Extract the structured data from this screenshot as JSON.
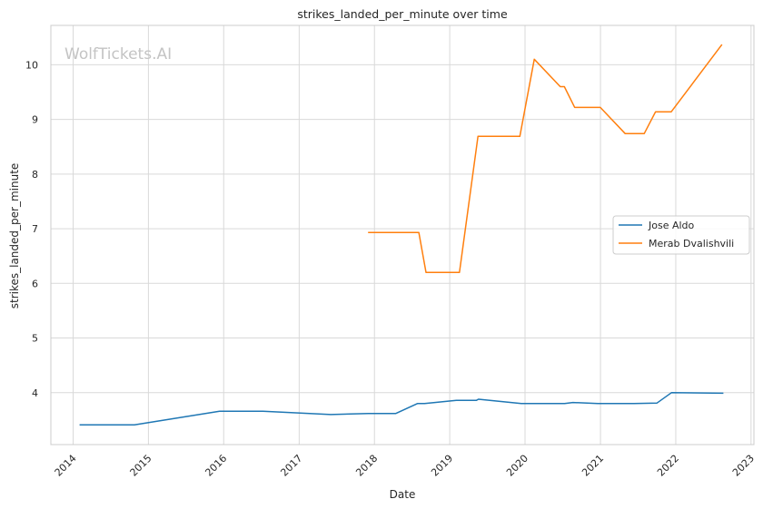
{
  "chart_data": {
    "type": "line",
    "title": "strikes_landed_per_minute over time",
    "xlabel": "Date",
    "ylabel": "strikes_landed_per_minute",
    "watermark": "WolfTickets.AI",
    "x_ticks": [
      "2014",
      "2015",
      "2016",
      "2017",
      "2018",
      "2019",
      "2020",
      "2021",
      "2022",
      "2023"
    ],
    "y_ticks": [
      "4",
      "5",
      "6",
      "7",
      "8",
      "9",
      "10"
    ],
    "xlim": [
      "2013-09-15",
      "2023-01-15"
    ],
    "ylim": [
      3.05,
      10.72
    ],
    "grid": true,
    "legend_position": "center-right",
    "series": [
      {
        "name": "Jose Aldo",
        "color": "#1f77b4",
        "points": [
          [
            "2014-02-01",
            3.41
          ],
          [
            "2014-10-25",
            3.41
          ],
          [
            "2015-12-12",
            3.66
          ],
          [
            "2016-07-09",
            3.66
          ],
          [
            "2017-06-03",
            3.6
          ],
          [
            "2017-12-02",
            3.62
          ],
          [
            "2018-04-15",
            3.62
          ],
          [
            "2018-07-28",
            3.8
          ],
          [
            "2018-09-01",
            3.8
          ],
          [
            "2019-02-02",
            3.86
          ],
          [
            "2019-05-11",
            3.86
          ],
          [
            "2019-05-20",
            3.88
          ],
          [
            "2019-12-14",
            3.8
          ],
          [
            "2020-07-11",
            3.8
          ],
          [
            "2020-08-20",
            3.82
          ],
          [
            "2020-12-19",
            3.8
          ],
          [
            "2021-06-12",
            3.8
          ],
          [
            "2021-10-02",
            3.81
          ],
          [
            "2021-12-11",
            4.0
          ],
          [
            "2022-08-20",
            3.99
          ]
        ]
      },
      {
        "name": "Merab Dvalishvili",
        "color": "#ff7f0e",
        "points": [
          [
            "2017-12-01",
            6.93
          ],
          [
            "2018-08-04",
            6.93
          ],
          [
            "2018-09-08",
            6.2
          ],
          [
            "2019-02-17",
            6.2
          ],
          [
            "2019-05-18",
            8.69
          ],
          [
            "2019-12-07",
            8.69
          ],
          [
            "2020-02-15",
            10.1
          ],
          [
            "2020-06-20",
            9.6
          ],
          [
            "2020-07-10",
            9.6
          ],
          [
            "2020-08-29",
            9.22
          ],
          [
            "2020-12-31",
            9.22
          ],
          [
            "2021-05-01",
            8.74
          ],
          [
            "2021-08-01",
            8.74
          ],
          [
            "2021-09-25",
            9.14
          ],
          [
            "2021-12-10",
            9.14
          ],
          [
            "2022-08-13",
            10.37
          ]
        ]
      }
    ]
  }
}
